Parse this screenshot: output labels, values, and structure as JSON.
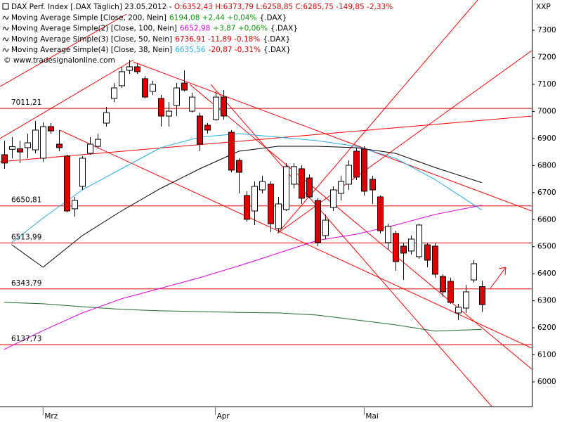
{
  "chart_data": {
    "type": "candlestick",
    "title_parts": [
      {
        "text": "DAX Perf. Index [.DAX  Täglich] 23.05.2012 - ",
        "color": "#000000"
      },
      {
        "text": "O:6352,43 H:6373,79 L:6258,85 C:6285,75 -149,85 -2,33%",
        "color": "#e00000"
      }
    ],
    "source": "© www.tradesignalonline.com",
    "y_axis_title": "XXP",
    "categories": [
      null,
      null,
      null,
      null,
      null,
      "Mrz",
      null,
      null,
      null,
      null,
      null,
      null,
      null,
      null,
      null,
      null,
      null,
      null,
      null,
      null,
      null,
      null,
      null,
      null,
      null,
      null,
      null,
      "Apr",
      null,
      null,
      null,
      null,
      null,
      null,
      null,
      null,
      null,
      null,
      null,
      null,
      null,
      null,
      null,
      null,
      null,
      null,
      "Mai",
      null,
      null,
      null,
      null,
      null,
      null,
      null,
      null,
      null,
      null,
      null,
      null,
      null,
      null,
      null
    ],
    "open": [
      6840,
      6860,
      6862,
      6866,
      6858,
      6827,
      6944,
      6879,
      6835,
      6640,
      6723,
      6845,
      6871,
      6957,
      7048,
      7095,
      7152,
      7165,
      7121,
      7074,
      7048,
      6983,
      7022,
      7105,
      7001,
      6983,
      6949,
      6970,
      7053,
      6923,
      6819,
      6689,
      6632,
      6710,
      6731,
      6567,
      6637,
      6731,
      6788,
      6754,
      6671,
      6541,
      6645,
      6697,
      6731,
      6853,
      6861,
      6749,
      6684,
      6515,
      6549,
      6502,
      6484,
      6463,
      6507,
      6502,
      6390,
      6372,
      6255,
      6273,
      6377,
      6352.43
    ],
    "high": [
      6892,
      6905,
      6892,
      6918,
      6965,
      6960,
      6957,
      6931,
      6840,
      6684,
      6835,
      6905,
      6918,
      7017,
      7105,
      7165,
      7191,
      7178,
      7131,
      7113,
      7061,
      7035,
      7105,
      7152,
      7069,
      6996,
      6957,
      7074,
      7079,
      6931,
      6827,
      6705,
      6741,
      6762,
      6741,
      6684,
      6809,
      6809,
      6801,
      6767,
      6679,
      6619,
      6723,
      6762,
      6819,
      6866,
      6871,
      6762,
      6689,
      6585,
      6559,
      6515,
      6541,
      6585,
      6515,
      6515,
      6398,
      6385,
      6289,
      6359,
      6450,
      6373.79
    ],
    "low": [
      6788,
      6827,
      6809,
      6827,
      6845,
      6814,
      6918,
      6853,
      6627,
      6611,
      6710,
      6840,
      6861,
      6944,
      7035,
      7087,
      7139,
      7139,
      7048,
      7061,
      6944,
      6944,
      6983,
      7074,
      6996,
      6853,
      6918,
      6965,
      6970,
      6775,
      6697,
      6593,
      6580,
      6697,
      6554,
      6554,
      6632,
      6715,
      6658,
      6679,
      6502,
      6528,
      6632,
      6671,
      6710,
      6746,
      6689,
      6658,
      6549,
      6489,
      6411,
      6377,
      6471,
      6455,
      6424,
      6385,
      6315,
      6289,
      6229,
      6255,
      6367,
      6258.85
    ],
    "close": [
      6809,
      6870,
      6850,
      6884,
      6931,
      6944,
      6928,
      6866,
      6632,
      6671,
      6827,
      6879,
      6897,
      6996,
      7087,
      7147,
      7165,
      7147,
      7053,
      7100,
      6983,
      7001,
      7087,
      7079,
      7053,
      6879,
      6931,
      7053,
      6983,
      6783,
      6775,
      6601,
      6723,
      6741,
      6585,
      6658,
      6796,
      6796,
      6679,
      6684,
      6515,
      6598,
      6710,
      6741,
      6801,
      6757,
      6705,
      6710,
      6559,
      6575,
      6445,
      6476,
      6528,
      6580,
      6450,
      6398,
      6333,
      6294,
      6276,
      6333,
      6437,
      6285.75
    ],
    "up_color": "#ffffff",
    "down_color": "#e00000",
    "series": [
      {
        "name": "Moving Average Simple [Close, 200, Nein]",
        "color": "#1e6b2a",
        "label_parts": [
          {
            "text": "6194,08 +2,44 +0,04%",
            "color": "#00a000"
          },
          {
            "text": "{.DAX}",
            "color": "#000000"
          }
        ],
        "x": [
          0,
          5,
          10,
          15,
          20,
          25,
          30,
          35,
          40,
          45,
          50,
          55,
          61
        ],
        "values": [
          6294,
          6289,
          6278,
          6268,
          6263,
          6260,
          6257,
          6255,
          6247,
          6229,
          6211,
          6188,
          6194
        ]
      },
      {
        "name": "Moving Average Simple(2) [Close, 100, Nein]",
        "color": "#e000e0",
        "label_parts": [
          {
            "text": "6652,98",
            "color": "#e000e0"
          },
          {
            "text": "+3,87 +0,06%",
            "color": "#00a000"
          },
          {
            "text": "{.DAX}",
            "color": "#000000"
          }
        ],
        "x": [
          0,
          5,
          10,
          15,
          20,
          25,
          30,
          35,
          40,
          45,
          50,
          55,
          61
        ],
        "values": [
          6120,
          6190,
          6255,
          6307,
          6346,
          6385,
          6429,
          6476,
          6523,
          6546,
          6580,
          6619,
          6653
        ]
      },
      {
        "name": "Moving Average Simple(3) [Close, 50, Nein]",
        "color": "#000000",
        "label_parts": [
          {
            "text": "6736,91 -11,89 -0,18%",
            "color": "#e00000"
          },
          {
            "text": "{.DAX}",
            "color": "#000000"
          }
        ],
        "x": [
          1,
          5,
          10,
          15,
          20,
          25,
          30,
          35,
          40,
          45,
          50,
          55,
          61
        ],
        "values": [
          6507,
          6424,
          6541,
          6632,
          6715,
          6788,
          6853,
          6871,
          6871,
          6866,
          6845,
          6793,
          6737
        ]
      },
      {
        "name": "Moving Average Simple(4) [Close, 38, Nein]",
        "color": "#1fb0e8",
        "label_parts": [
          {
            "text": "6635,56",
            "color": "#1fb0e8"
          },
          {
            "text": "-20,87 -0,31%",
            "color": "#e00000"
          },
          {
            "text": "{.DAX}",
            "color": "#000000"
          }
        ],
        "x": [
          1,
          5,
          10,
          15,
          20,
          25,
          30,
          35,
          40,
          45,
          50,
          55,
          61
        ],
        "values": [
          6515,
          6606,
          6710,
          6788,
          6866,
          6905,
          6918,
          6905,
          6892,
          6871,
          6827,
          6749,
          6636
        ]
      }
    ],
    "levels": [
      {
        "value": 7011.21,
        "label": "7011,21"
      },
      {
        "value": 6650.81,
        "label": "6650,81"
      },
      {
        "value": 6513.99,
        "label": "6513,99"
      },
      {
        "value": 6343.79,
        "label": "6343,79"
      },
      {
        "value": 6137.73,
        "label": "6137,73"
      }
    ],
    "level_color": "#e00000",
    "trendline_color": "#ff0000",
    "trendlines": [
      {
        "x": [
          -0.5,
          67.4
        ],
        "y": [
          6814,
          6983
        ]
      },
      {
        "x": [
          -0.5,
          16.54
        ],
        "y": [
          6900,
          7191
        ]
      },
      {
        "x": [
          -0.5,
          15.65
        ],
        "y": [
          7092,
          7360
        ]
      },
      {
        "x": [
          16.54,
          67.4
        ],
        "y": [
          7183,
          6632
        ]
      },
      {
        "x": [
          7.12,
          67.4
        ],
        "y": [
          6931,
          6125
        ]
      },
      {
        "x": [
          23.72,
          67.4
        ],
        "y": [
          7100,
          6047
        ]
      },
      {
        "x": [
          26.41,
          62.29
        ],
        "y": [
          7100,
          5909
        ]
      },
      {
        "x": [
          34.93,
          60.49
        ],
        "y": [
          6549,
          7412
        ]
      },
      {
        "x": [
          34.93,
          67.4
        ],
        "y": [
          6549,
          7225
        ]
      }
    ],
    "xlim": [
      -0.5,
      67.4
    ],
    "ylim": [
      5909,
      7412
    ],
    "yticks": [
      6000,
      6100,
      6200,
      6300,
      6400,
      6500,
      6600,
      6700,
      6800,
      6900,
      7000,
      7100,
      7200,
      7300
    ]
  }
}
